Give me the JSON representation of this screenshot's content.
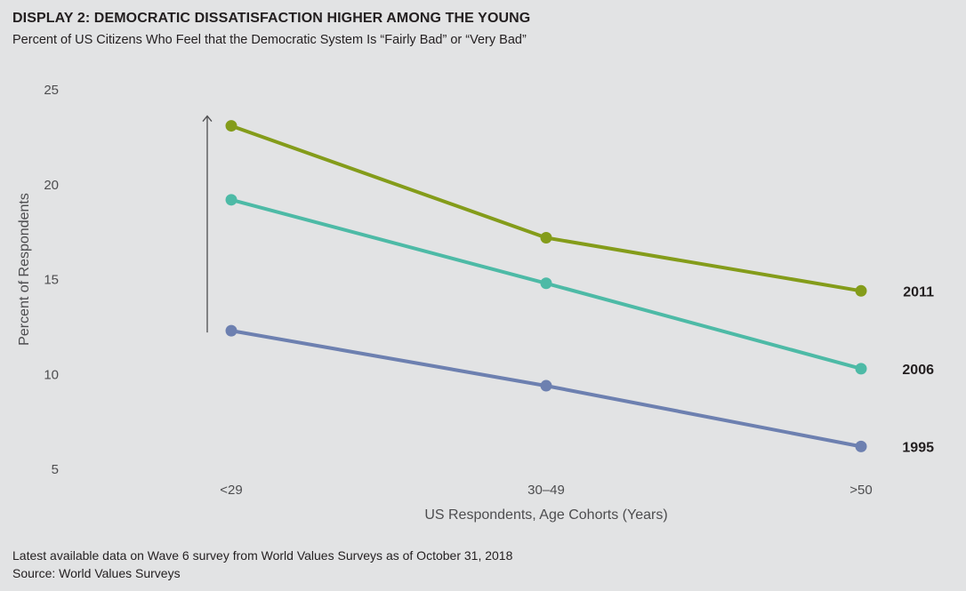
{
  "header": {
    "title": "DISPLAY 2: DEMOCRATIC DISSATISFACTION HIGHER AMONG THE YOUNG",
    "subtitle": "Percent of US Citizens Who Feel that the Democratic System Is “Fairly Bad” or “Very Bad”"
  },
  "chart_data": {
    "type": "line",
    "categories": [
      "<29",
      "30–49",
      ">50"
    ],
    "series": [
      {
        "name": "2011",
        "values": [
          23.1,
          17.2,
          14.4
        ],
        "color": "#849c1a"
      },
      {
        "name": "2006",
        "values": [
          19.2,
          14.8,
          10.3
        ],
        "color": "#4dbaa6"
      },
      {
        "name": "1995",
        "values": [
          12.3,
          9.4,
          6.2
        ],
        "color": "#6d80b0"
      }
    ],
    "title": "DISPLAY 2: DEMOCRATIC DISSATISFACTION HIGHER AMONG THE YOUNG",
    "subtitle": "Percent of US Citizens Who Feel that the Democratic System Is “Fairly Bad” or “Very Bad”",
    "xlabel": "US Respondents, Age Cohorts (Years)",
    "ylabel": "Percent of Respondents",
    "ylim": [
      5,
      25
    ],
    "yticks": [
      5,
      10,
      15,
      20,
      25
    ],
    "grid": false,
    "legend": "right, inline series labels"
  },
  "footer": {
    "note": "Latest available data on Wave 6 survey from World Values Surveys as of October 31, 2018",
    "source": "Source: World Values Surveys"
  }
}
